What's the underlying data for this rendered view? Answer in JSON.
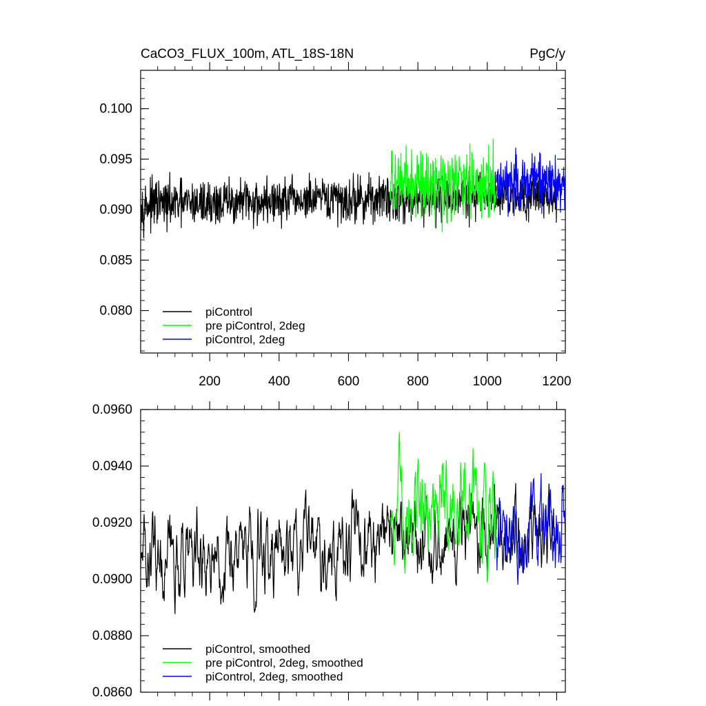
{
  "chart_data": [
    {
      "type": "line",
      "title": "CaCO3_FLUX_100m, ATL_18S-18N",
      "units": "PgC/y",
      "xlim": [
        1,
        1225
      ],
      "ylim": [
        0.0758,
        0.1038
      ],
      "x_ticks": [
        200,
        400,
        600,
        800,
        1000,
        1200
      ],
      "x_tick_labels": [
        "200",
        "400",
        "600",
        "800",
        "1000",
        "1200"
      ],
      "y_ticks": [
        0.08,
        0.085,
        0.09,
        0.095,
        0.1
      ],
      "y_tick_labels": [
        "0.080",
        "0.085",
        "0.090",
        "0.095",
        "0.100"
      ],
      "legend_position": "bottom-left",
      "series": [
        {
          "name": "piControl",
          "color": "#000000",
          "x_start": 1,
          "x_end": 1200,
          "mean": 0.091,
          "spread": 0.0034
        },
        {
          "name": "pre piControl, 2deg",
          "color": "#00ff00",
          "x_start": 721,
          "x_end": 1026,
          "mean": 0.0925,
          "spread": 0.005
        },
        {
          "name": "piControl, 2deg",
          "color": "#0000ff",
          "x_start": 1026,
          "x_end": 1225,
          "mean": 0.0928,
          "spread": 0.004
        }
      ]
    },
    {
      "type": "line",
      "xlim": [
        1,
        1225
      ],
      "ylim": [
        0.086,
        0.096
      ],
      "x_ticks": [
        200,
        400,
        600,
        800,
        1000,
        1200
      ],
      "y_ticks": [
        0.086,
        0.088,
        0.09,
        0.092,
        0.094,
        0.096
      ],
      "y_tick_labels": [
        "0.0860",
        "0.0880",
        "0.0900",
        "0.0920",
        "0.0940",
        "0.0960"
      ],
      "legend_position": "bottom-left",
      "series": [
        {
          "name": "piControl, smoothed",
          "color": "#000000",
          "x_start": 1,
          "x_end": 1200,
          "mean": 0.0912,
          "spread": 0.0013
        },
        {
          "name": "pre piControl, 2deg, smoothed",
          "color": "#00ff00",
          "x_start": 721,
          "x_end": 1026,
          "mean": 0.0925,
          "spread": 0.0016
        },
        {
          "name": "piControl, 2deg, smoothed",
          "color": "#0000ff",
          "x_start": 1026,
          "x_end": 1225,
          "mean": 0.0918,
          "spread": 0.0014
        }
      ]
    }
  ]
}
